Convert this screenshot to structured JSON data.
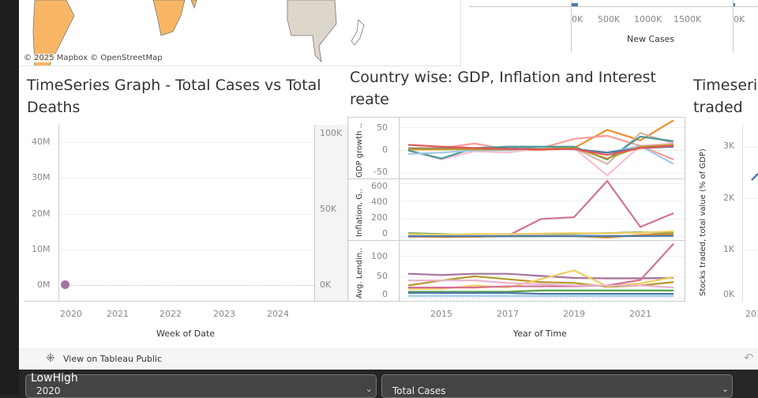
{
  "map": {
    "attribution": "© 2025 Mapbox © OpenStreetMap"
  },
  "new_cases_chart": {
    "ticks": [
      "0K",
      "500K",
      "1000K",
      "1500K",
      "0K"
    ],
    "xlabel": "New Cases"
  },
  "ts_cases": {
    "title_line1": "TimeSeries Graph - Total Cases vs Total",
    "title_line2": "Deaths",
    "y_left_ticks": [
      "40M",
      "30M",
      "20M",
      "10M",
      "0M"
    ],
    "y_right_ticks": [
      "100K",
      "50K",
      "0K"
    ],
    "x_ticks": [
      "2020",
      "2021",
      "2022",
      "2023",
      "2024"
    ],
    "xlabel": "Week of Date",
    "point_color": "#a6739f"
  },
  "country_chart": {
    "title_line1": "Country wise: GDP, Inflation and Interest",
    "title_line2": "reate",
    "panel_labels": [
      "GDP growth ..",
      "Inflation, G..",
      "Avg. Lendin.."
    ],
    "gdp_ticks": [
      "50",
      "0",
      "-50"
    ],
    "inflation_ticks": [
      "600",
      "400",
      "200",
      "0"
    ],
    "lending_ticks": [
      "100",
      "50",
      "0"
    ],
    "x_ticks": [
      "2015",
      "2017",
      "2019",
      "2021"
    ],
    "xlabel": "Year of Time"
  },
  "chart_data": {
    "type": "line",
    "x": [
      2014,
      2015,
      2016,
      2017,
      2018,
      2019,
      2020,
      2021,
      2022
    ],
    "panels": [
      {
        "measure": "GDP growth",
        "ylim": [
          -60,
          70
        ],
        "series": [
          {
            "color": "#f28e2b",
            "values": [
              2,
              2,
              3,
              1,
              1,
              5,
              45,
              22,
              66
            ]
          },
          {
            "color": "#ff9d9a",
            "values": [
              5,
              5,
              15,
              2,
              5,
              25,
              32,
              10,
              -20
            ]
          },
          {
            "color": "#fabfd2",
            "values": [
              0,
              -20,
              -2,
              -5,
              5,
              5,
              -55,
              10,
              15
            ]
          },
          {
            "color": "#d7b5a6",
            "values": [
              3,
              5,
              3,
              3,
              5,
              5,
              -30,
              38,
              15
            ]
          },
          {
            "color": "#499894",
            "values": [
              0,
              -18,
              5,
              8,
              8,
              8,
              -20,
              30,
              20
            ]
          },
          {
            "color": "#a0cbe8",
            "values": [
              -8,
              -5,
              0,
              0,
              5,
              2,
              -5,
              10,
              -30
            ]
          },
          {
            "color": "#4e79a7",
            "values": [
              4,
              4,
              4,
              4,
              3,
              3,
              -5,
              5,
              8
            ]
          },
          {
            "color": "#b6992d",
            "values": [
              3,
              3,
              2,
              2,
              3,
              5,
              -18,
              8,
              12
            ]
          },
          {
            "color": "#e15759",
            "values": [
              12,
              8,
              5,
              3,
              2,
              3,
              -10,
              5,
              10
            ]
          }
        ]
      },
      {
        "measure": "Inflation",
        "ylim": [
          -20,
          640
        ],
        "series": [
          {
            "color": "#d37295",
            "values": [
              0,
              0,
              0,
              10,
              200,
              220,
              630,
              110,
              265
            ]
          },
          {
            "color": "#59a14f",
            "values": [
              40,
              30,
              20,
              25,
              30,
              35,
              40,
              50,
              40
            ]
          },
          {
            "color": "#f1ce63",
            "values": [
              30,
              25,
              30,
              30,
              35,
              40,
              38,
              45,
              60
            ]
          },
          {
            "color": "#a0cbe8",
            "values": [
              10,
              8,
              10,
              10,
              15,
              15,
              12,
              10,
              15
            ]
          },
          {
            "color": "#f28e2b",
            "values": [
              5,
              -5,
              0,
              5,
              8,
              8,
              -10,
              20,
              30
            ]
          },
          {
            "color": "#4e79a7",
            "values": [
              5,
              5,
              5,
              5,
              5,
              5,
              5,
              8,
              10
            ]
          }
        ]
      },
      {
        "measure": "Avg. Lending rate",
        "ylim": [
          -5,
          135
        ],
        "series": [
          {
            "color": "#a6739f",
            "values": [
              58,
              55,
              58,
              58,
              53,
              48,
              47,
              47,
              48
            ]
          },
          {
            "color": "#b6992d",
            "values": [
              30,
              42,
              52,
              45,
              38,
              36,
              27,
              30,
              38
            ]
          },
          {
            "color": "#f1ce63",
            "values": [
              22,
              22,
              30,
              25,
              45,
              66,
              28,
              35,
              50
            ]
          },
          {
            "color": "#d37295",
            "values": [
              25,
              25,
              25,
              28,
              28,
              28,
              30,
              43,
              130
            ]
          },
          {
            "color": "#e7b4cd",
            "values": [
              42,
              42,
              42,
              36,
              33,
              30,
              30,
              30,
              25
            ]
          },
          {
            "color": "#59a14f",
            "values": [
              15,
              15,
              15,
              15,
              18,
              18,
              18,
              18,
              18
            ]
          },
          {
            "color": "#4e79a7",
            "values": [
              12,
              12,
              12,
              12,
              10,
              10,
              10,
              10,
              10
            ]
          },
          {
            "color": "#a0cbe8",
            "values": [
              5,
              5,
              5,
              5,
              5,
              5,
              5,
              5,
              5
            ]
          }
        ]
      }
    ]
  },
  "stocks_chart": {
    "title_line1": "Timeseri",
    "title_line2": "traded",
    "ylabel": "Stocks traded, total value (% of GDP)",
    "y_ticks": [
      "3K",
      "2K",
      "1K",
      "0K"
    ],
    "x_tick_partial": "201",
    "line_color": "#4e79a7"
  },
  "footer": {
    "link": "View on Tableau Public"
  },
  "filters": {
    "year": {
      "label": "LowHigh",
      "value": "2020"
    },
    "measure": {
      "value": "Total Cases"
    }
  }
}
